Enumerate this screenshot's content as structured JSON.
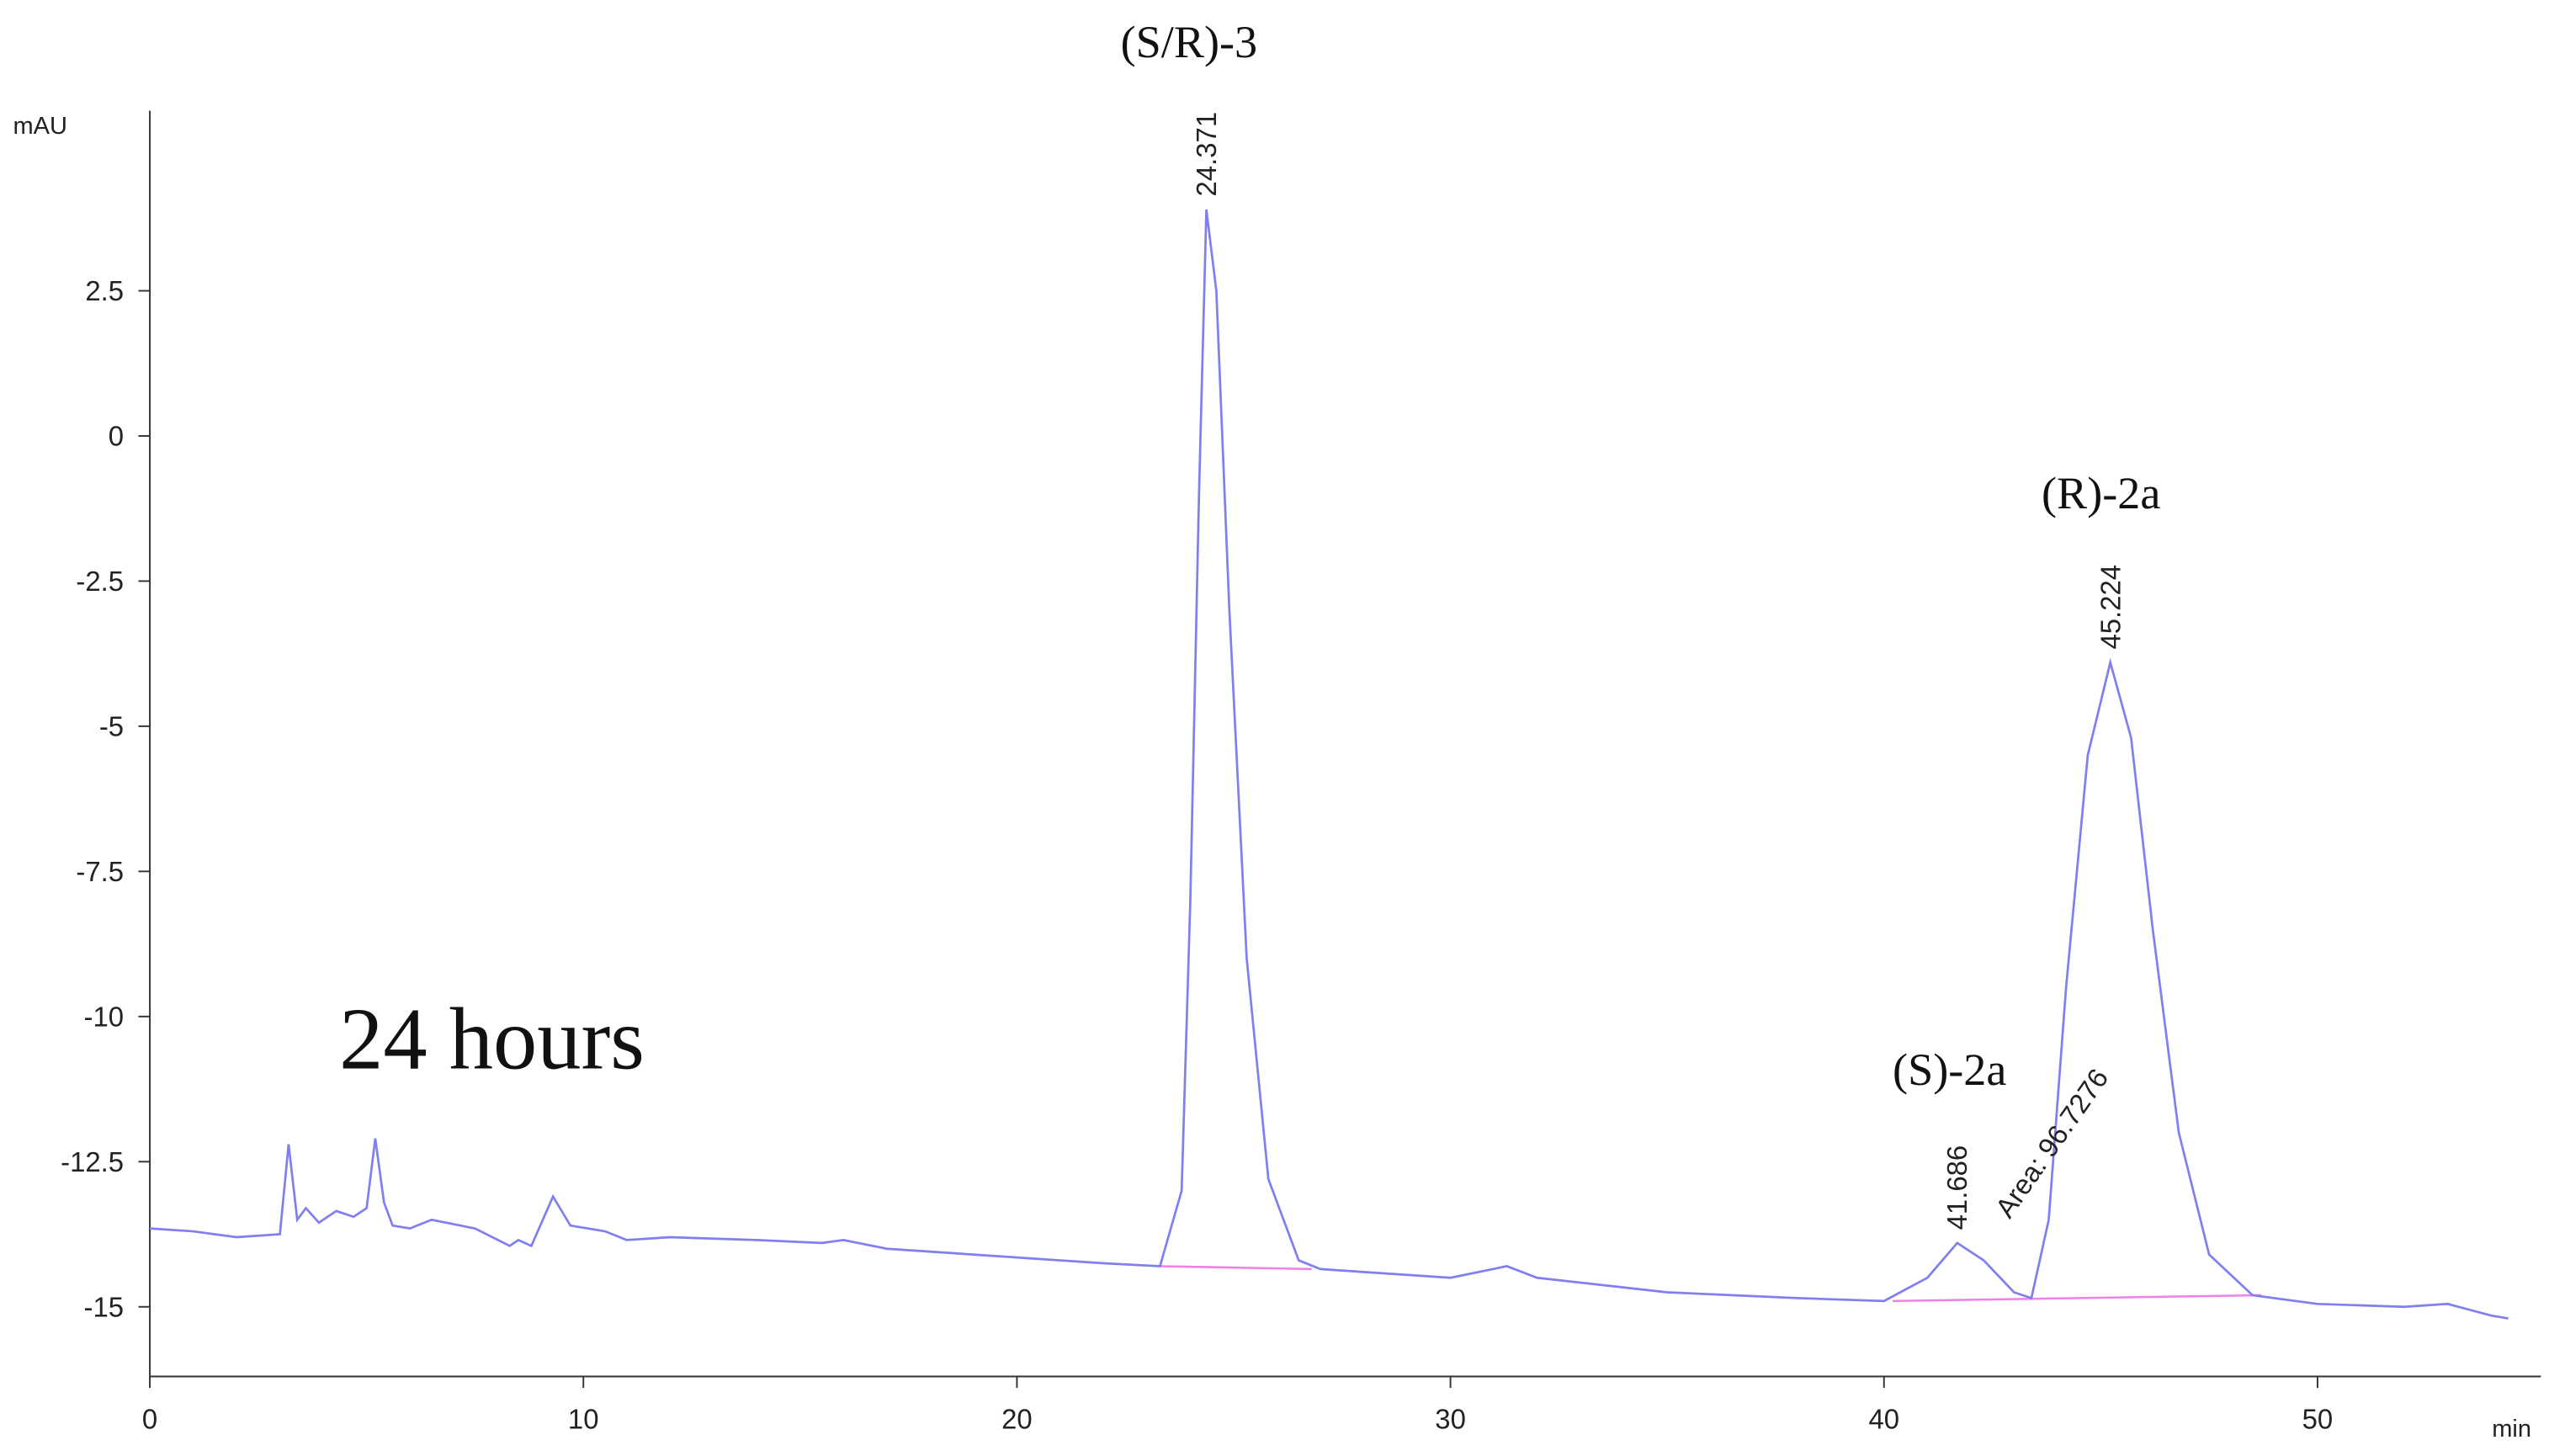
{
  "chart_data": {
    "type": "line",
    "y_axis_label": "mAU",
    "x_axis_label": "min",
    "xlim": [
      0,
      54.4
    ],
    "ylim": [
      -16.2,
      5.6
    ],
    "xticks": [
      0,
      10,
      20,
      30,
      40,
      50
    ],
    "yticks": [
      2.5,
      0,
      -2.5,
      -5,
      -7.5,
      -10,
      -12.5,
      -15
    ],
    "x": [
      0,
      1,
      2,
      3,
      3.2,
      3.4,
      3.6,
      3.9,
      4.3,
      4.7,
      5.0,
      5.2,
      5.4,
      5.6,
      6.0,
      6.5,
      7.5,
      8.3,
      8.5,
      8.8,
      9.3,
      9.7,
      10.5,
      11,
      12,
      14,
      15.5,
      16,
      17,
      20,
      22,
      23.3,
      23.8,
      24.0,
      24.2,
      24.37,
      24.6,
      24.9,
      25.3,
      25.8,
      26.5,
      27,
      30,
      31.3,
      32,
      35,
      38,
      40,
      41,
      41.69,
      42.3,
      43,
      43.4,
      43.8,
      44.2,
      44.7,
      45.22,
      45.7,
      46.2,
      46.8,
      47.5,
      48.5,
      50,
      52,
      53,
      54,
      54.4
    ],
    "series": [
      {
        "color": "#7f7ff2",
        "values": [
          -13.65,
          -13.7,
          -13.8,
          -13.75,
          -12.2,
          -13.5,
          -13.3,
          -13.55,
          -13.35,
          -13.45,
          -13.3,
          -12.1,
          -13.2,
          -13.6,
          -13.65,
          -13.5,
          -13.65,
          -13.95,
          -13.85,
          -13.95,
          -13.1,
          -13.6,
          -13.7,
          -13.85,
          -13.8,
          -13.85,
          -13.9,
          -13.85,
          -14.0,
          -14.15,
          -14.25,
          -14.3,
          -13.0,
          -8,
          -1,
          3.9,
          2.5,
          -3,
          -9,
          -12.8,
          -14.2,
          -14.35,
          -14.5,
          -14.3,
          -14.5,
          -14.75,
          -14.85,
          -14.9,
          -14.5,
          -13.9,
          -14.2,
          -14.75,
          -14.85,
          -13.5,
          -9.5,
          -5.5,
          -3.9,
          -5.2,
          -8.5,
          -12,
          -14.1,
          -14.8,
          -14.95,
          -15.0,
          -14.95,
          -15.15,
          -15.2
        ]
      }
    ],
    "baselines": [
      {
        "color": "#f080e8",
        "x": [
          23.3,
          26.8
        ],
        "values": [
          -14.3,
          -14.35
        ]
      },
      {
        "color": "#f080e8",
        "x": [
          40.2,
          48.7
        ],
        "values": [
          -14.9,
          -14.8
        ]
      }
    ],
    "peaks": [
      24.371,
      41.686,
      45.224
    ],
    "area_label": "Area: 96.7276",
    "annotations": [
      "(S/R)-3",
      "(S)-2a",
      "(R)-2a",
      "24 hours"
    ]
  }
}
